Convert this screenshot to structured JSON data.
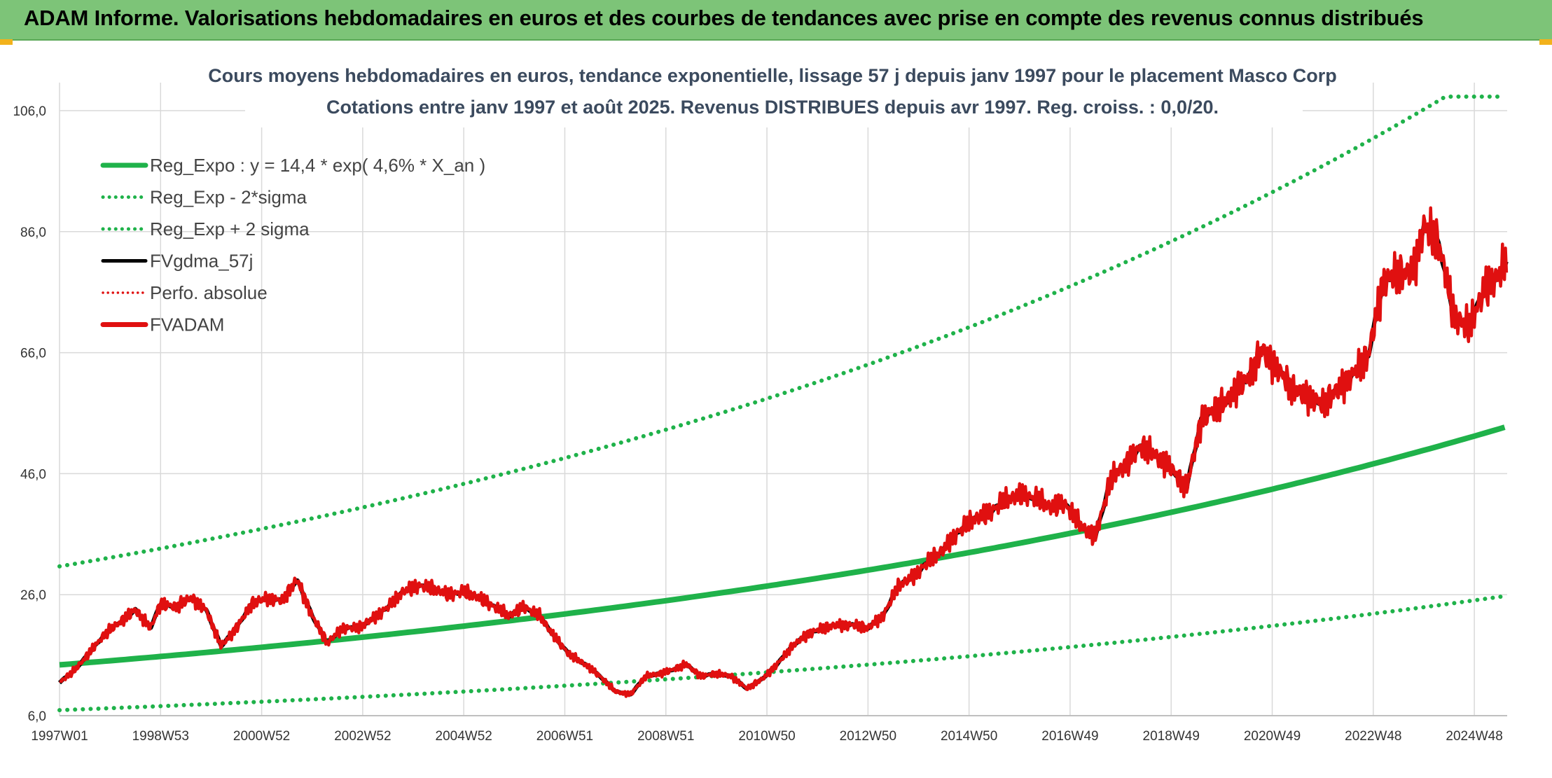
{
  "banner": {
    "title": "ADAM Informe. Valorisations hebdomadaires en euros et des courbes de tendances avec prise en compte des revenus connus distribués"
  },
  "chart_data": {
    "type": "line",
    "title": "Cours moyens hebdomadaires en euros, tendance exponentielle, lissage 57 j depuis janv 1997 pour le placement Masco Corp",
    "subtitle": "Cotations entre janv 1997 et août 2025. Revenus DISTRIBUES depuis avr 1997. Reg. croiss. : 0,0/20.",
    "xlabel": "",
    "ylabel": "",
    "ylim": [
      6,
      106
    ],
    "xlim": [
      1997.0,
      2025.65
    ],
    "y_ticks": [
      "6,0",
      "26,0",
      "46,0",
      "66,0",
      "86,0",
      "106,0"
    ],
    "x_ticks": [
      {
        "label": "1997W01",
        "t": 1997.0
      },
      {
        "label": "1998W53",
        "t": 1999.0
      },
      {
        "label": "2000W52",
        "t": 2001.0
      },
      {
        "label": "2002W52",
        "t": 2003.0
      },
      {
        "label": "2004W52",
        "t": 2005.0
      },
      {
        "label": "2006W51",
        "t": 2007.0
      },
      {
        "label": "2008W51",
        "t": 2009.0
      },
      {
        "label": "2010W50",
        "t": 2011.0
      },
      {
        "label": "2012W50",
        "t": 2013.0
      },
      {
        "label": "2014W50",
        "t": 2015.0
      },
      {
        "label": "2016W49",
        "t": 2017.0
      },
      {
        "label": "2018W49",
        "t": 2019.0
      },
      {
        "label": "2020W49",
        "t": 2021.0
      },
      {
        "label": "2022W48",
        "t": 2023.0
      },
      {
        "label": "2024W48",
        "t": 2025.0
      }
    ],
    "grid": true,
    "legend_position": "top-left",
    "regression": {
      "a": 14.4,
      "growth": 0.046,
      "lower_factor": 0.48,
      "upper_factor": 2.13
    },
    "series": [
      {
        "name": "Reg_Expo : y = 14,4 * exp( 4,6% *  X_an )",
        "color": "#1fb24a",
        "style": "solid-thick",
        "kind": "reg"
      },
      {
        "name": "Reg_Exp - 2*sigma",
        "color": "#1fb24a",
        "style": "dotted",
        "kind": "lower"
      },
      {
        "name": "Reg_Exp + 2 sigma",
        "color": "#1fb24a",
        "style": "dotted",
        "kind": "upper"
      },
      {
        "name": "FVgdma_57j",
        "color": "#000000",
        "style": "solid",
        "kind": "smooth"
      },
      {
        "name": "Perfo. absolue",
        "color": "#e01010",
        "style": "dotted-thin",
        "kind": "perfo"
      },
      {
        "name": "FVADAM",
        "color": "#e01010",
        "style": "solid-thick",
        "kind": "price",
        "x": [
          1997.0,
          1997.3,
          1997.6,
          1997.9,
          1998.2,
          1998.5,
          1998.8,
          1999.0,
          1999.3,
          1999.6,
          1999.9,
          2000.2,
          2000.5,
          2000.8,
          2001.1,
          2001.4,
          2001.7,
          2002.0,
          2002.3,
          2002.6,
          2002.9,
          2003.2,
          2003.5,
          2003.8,
          2004.1,
          2004.4,
          2004.7,
          2005.0,
          2005.3,
          2005.6,
          2005.9,
          2006.2,
          2006.5,
          2006.8,
          2007.1,
          2007.4,
          2007.7,
          2008.0,
          2008.3,
          2008.6,
          2008.9,
          2009.1,
          2009.4,
          2009.7,
          2010.0,
          2010.3,
          2010.6,
          2010.9,
          2011.2,
          2011.5,
          2011.8,
          2012.1,
          2012.4,
          2012.7,
          2013.0,
          2013.3,
          2013.6,
          2013.9,
          2014.2,
          2014.5,
          2014.8,
          2015.1,
          2015.4,
          2015.7,
          2016.0,
          2016.3,
          2016.6,
          2016.9,
          2017.2,
          2017.5,
          2017.8,
          2018.1,
          2018.4,
          2018.7,
          2019.0,
          2019.3,
          2019.6,
          2019.9,
          2020.1,
          2020.3,
          2020.5,
          2020.8,
          2021.1,
          2021.4,
          2021.7,
          2022.0,
          2022.3,
          2022.6,
          2022.9,
          2023.2,
          2023.5,
          2023.8,
          2024.0,
          2024.3,
          2024.6,
          2024.9,
          2025.0,
          2025.2,
          2025.4,
          2025.65
        ],
        "y": [
          11.5,
          13.5,
          16.5,
          19.5,
          21.5,
          23.5,
          20.5,
          24.5,
          24.0,
          25.5,
          23.5,
          17.5,
          20.5,
          24.5,
          25.5,
          25.0,
          28.5,
          22.5,
          18.0,
          20.5,
          20.5,
          22.0,
          24.0,
          26.5,
          27.5,
          27.0,
          26.0,
          26.5,
          25.5,
          24.0,
          22.5,
          24.0,
          22.5,
          19.0,
          16.0,
          14.5,
          12.5,
          10.0,
          9.5,
          12.5,
          13.0,
          13.5,
          14.5,
          12.5,
          13.0,
          12.5,
          10.5,
          12.0,
          14.5,
          17.5,
          19.5,
          20.5,
          21.0,
          21.0,
          20.5,
          22.5,
          27.5,
          29.0,
          31.5,
          33.5,
          36.5,
          38.5,
          39.5,
          41.5,
          42.5,
          42.0,
          40.5,
          41.0,
          37.5,
          35.5,
          45.0,
          47.5,
          50.5,
          49.0,
          47.0,
          43.5,
          55.0,
          57.0,
          58.0,
          60.5,
          61.5,
          66.5,
          63.5,
          60.0,
          59.0,
          57.5,
          60.0,
          62.5,
          65.5,
          78.0,
          79.0,
          79.5,
          87.0,
          84.0,
          72.0,
          70.0,
          72.5,
          76.5,
          78.0,
          81.0
        ]
      }
    ]
  }
}
